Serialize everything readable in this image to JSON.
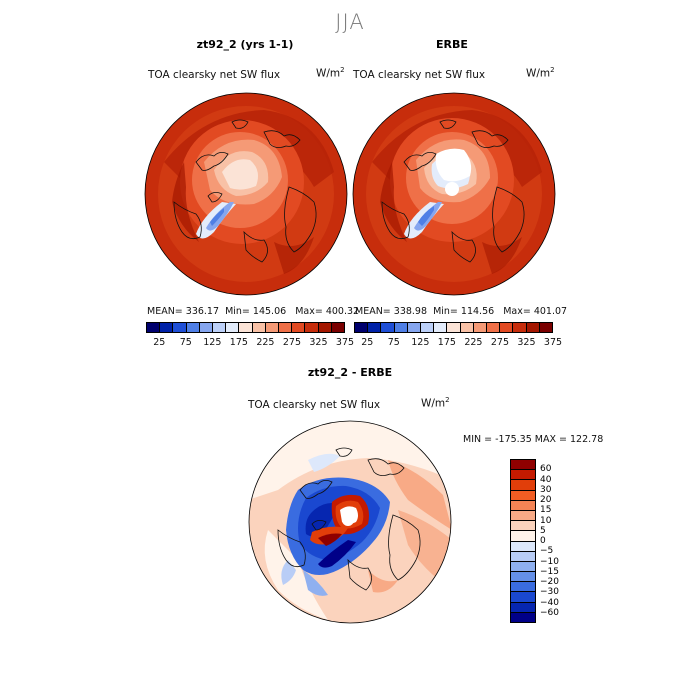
{
  "title": "JJA",
  "panels": [
    {
      "title": "zt92_2 (yrs 1-1)",
      "variable": "TOA clearsky net SW flux",
      "units": "W/m",
      "units_exp": "2",
      "mean": "MEAN= 336.17",
      "min": "Min= 145.06",
      "max": "Max= 400.32"
    },
    {
      "title": "ERBE",
      "variable": "TOA clearsky net SW flux",
      "units": "W/m",
      "units_exp": "2",
      "mean": "MEAN= 338.98",
      "min": "Min= 114.56",
      "max": "Max= 401.07"
    }
  ],
  "diff_panel": {
    "title": "zt92_2 - ERBE",
    "variable": "TOA clearsky net SW flux",
    "units": "W/m",
    "units_exp": "2",
    "minmax": "MIN = -175.35  MAX = 122.78"
  },
  "colorbar_top": {
    "tick_labels": [
      "25",
      "75",
      "125",
      "175",
      "225",
      "275",
      "325",
      "375"
    ],
    "colors": [
      "#00006e",
      "#0022a8",
      "#1f4fd6",
      "#4f7fe6",
      "#86a6ef",
      "#bcd0f8",
      "#e3ecfb",
      "#fbe3d6",
      "#f8c1a6",
      "#f59a76",
      "#ef7048",
      "#e24a22",
      "#c72d0c",
      "#a41700",
      "#7a0000"
    ]
  },
  "colorbar_diff": {
    "levels": [
      "60",
      "40",
      "30",
      "20",
      "15",
      "10",
      "5",
      "0",
      "−5",
      "−10",
      "−15",
      "−20",
      "−30",
      "−40",
      "−60"
    ],
    "colors": [
      "#8f0000",
      "#c41a00",
      "#e13e0a",
      "#f25d23",
      "#f58455",
      "#f8aa86",
      "#fbd3bd",
      "#fff3ea",
      "#dde8fb",
      "#b9cdf6",
      "#8fb0f0",
      "#6590e8",
      "#3a6ce0",
      "#1a48d0",
      "#0626b0",
      "#000088"
    ]
  },
  "chart_data": [
    {
      "type": "heatmap",
      "title": "zt92_2 (yrs 1-1)",
      "subtitle": "TOA clearsky net SW flux",
      "units": "W/m2",
      "projection": "polar stereographic (north)",
      "mean": 336.17,
      "min": 145.06,
      "max": 400.32,
      "contour_levels": [
        25,
        50,
        75,
        100,
        125,
        150,
        175,
        200,
        225,
        250,
        275,
        300,
        325,
        350,
        375
      ]
    },
    {
      "type": "heatmap",
      "title": "ERBE",
      "subtitle": "TOA clearsky net SW flux",
      "units": "W/m2",
      "projection": "polar stereographic (north)",
      "mean": 338.98,
      "min": 114.56,
      "max": 401.07,
      "contour_levels": [
        25,
        50,
        75,
        100,
        125,
        150,
        175,
        200,
        225,
        250,
        275,
        300,
        325,
        350,
        375
      ]
    },
    {
      "type": "heatmap",
      "title": "zt92_2 - ERBE",
      "subtitle": "TOA clearsky net SW flux",
      "units": "W/m2",
      "projection": "polar stereographic (north)",
      "min": -175.35,
      "max": 122.78,
      "contour_levels": [
        -60,
        -40,
        -30,
        -20,
        -15,
        -10,
        -5,
        0,
        5,
        10,
        15,
        20,
        30,
        40,
        60
      ]
    }
  ]
}
